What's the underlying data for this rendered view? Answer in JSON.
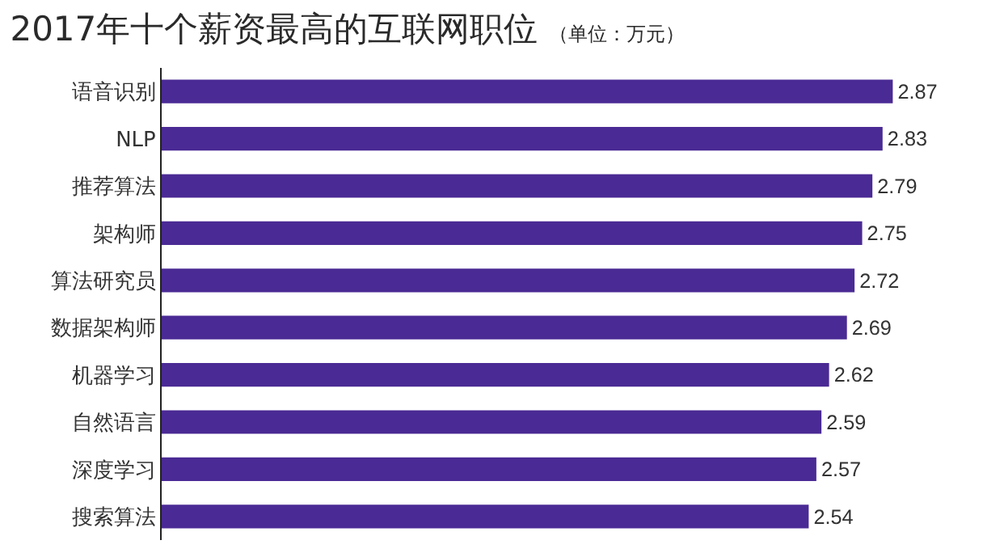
{
  "chart_data": {
    "type": "bar",
    "orientation": "horizontal",
    "title": "2017年十个薪资最高的互联网职位",
    "subtitle": "（单位：万元）",
    "categories": [
      "语音识别",
      "NLP",
      "推荐算法",
      "架构师",
      "算法研究员",
      "数据架构师",
      "机器学习",
      "自然语言",
      "深度学习",
      "搜索算法"
    ],
    "values": [
      2.87,
      2.83,
      2.79,
      2.75,
      2.72,
      2.69,
      2.62,
      2.59,
      2.57,
      2.54
    ],
    "color": "#4a2a94",
    "data_labels": true,
    "tick_labels": "y"
  }
}
